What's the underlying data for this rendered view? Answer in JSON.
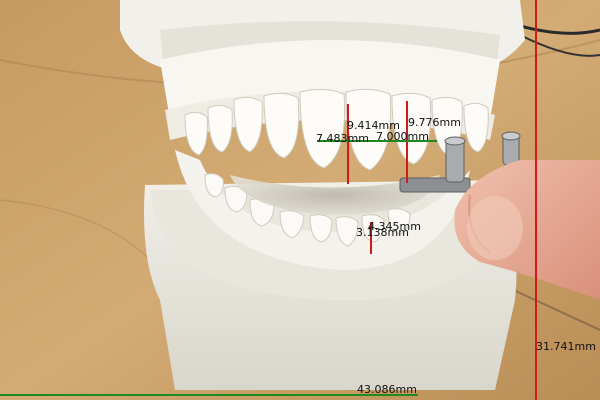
{
  "photo": {
    "subject": "dental-model-with-measurement-overlay"
  },
  "overlay": {
    "line_colors": {
      "vertical": "#d11a1a",
      "horizontal": "#1f8a1f"
    },
    "measurements": [
      {
        "id": "m1",
        "text": "9.414mm",
        "orientation": "vertical"
      },
      {
        "id": "m2",
        "text": "9.776mm",
        "orientation": "vertical"
      },
      {
        "id": "m3",
        "text": "7.483mm",
        "orientation": "horizontal"
      },
      {
        "id": "m4",
        "text": "7.000mm",
        "orientation": "horizontal"
      },
      {
        "id": "m5",
        "text": "4.345mm",
        "orientation": "vertical"
      },
      {
        "id": "m6",
        "text": "3.138mm",
        "orientation": "horizontal"
      },
      {
        "id": "m7",
        "text": "31.741mm",
        "orientation": "vertical"
      },
      {
        "id": "m8",
        "text": "43.086mm",
        "orientation": "horizontal"
      }
    ]
  }
}
